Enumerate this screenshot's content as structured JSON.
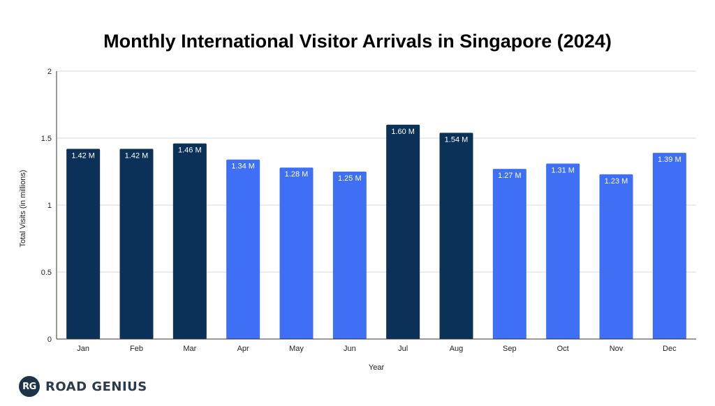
{
  "chart_data": {
    "type": "bar",
    "title": "Monthly International Visitor Arrivals in Singapore (2024)",
    "xlabel": "Year",
    "ylabel": "Total Visits (in millions)",
    "ylim": [
      0,
      2
    ],
    "yticks": [
      "0",
      "0.5",
      "1",
      "1.5",
      "2"
    ],
    "ytick_values": [
      0,
      0.5,
      1,
      1.5,
      2
    ],
    "grid": true,
    "categories": [
      "Jan",
      "Feb",
      "Mar",
      "Apr",
      "May",
      "Jun",
      "Jul",
      "Aug",
      "Sep",
      "Oct",
      "Nov",
      "Dec"
    ],
    "values": [
      1.42,
      1.42,
      1.46,
      1.34,
      1.28,
      1.25,
      1.6,
      1.54,
      1.27,
      1.31,
      1.23,
      1.39
    ],
    "value_labels": [
      "1.42 M",
      "1.42 M",
      "1.46 M",
      "1.34 M",
      "1.28 M",
      "1.25 M",
      "1.60 M",
      "1.54 M",
      "1.27 M",
      "1.31 M",
      "1.23 M",
      "1.39 M"
    ],
    "highlighted": [
      true,
      true,
      true,
      false,
      false,
      false,
      true,
      true,
      false,
      false,
      false,
      false
    ],
    "colors": {
      "highlight": "#0b3158",
      "normal": "#3e6ff4",
      "grid": "#d9d9d9",
      "axis": "#333333"
    }
  },
  "logo": {
    "badge": "RG",
    "text": "ROAD GENIUS"
  }
}
